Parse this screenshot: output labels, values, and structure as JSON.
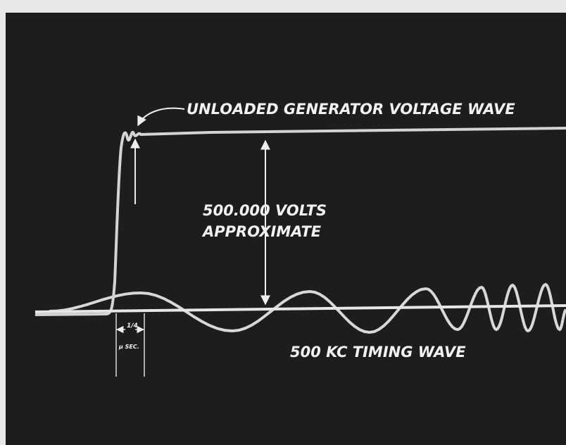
{
  "labels": {
    "voltage_wave": "UNLOADED GENERATOR VOLTAGE WAVE",
    "volts_line1": "500.000 VOLTS",
    "volts_line2": "APPROXIMATE",
    "timing_wave": "500 KC TIMING WAVE",
    "interval_top": "1/4",
    "interval_bottom": "μ SEC."
  }
}
